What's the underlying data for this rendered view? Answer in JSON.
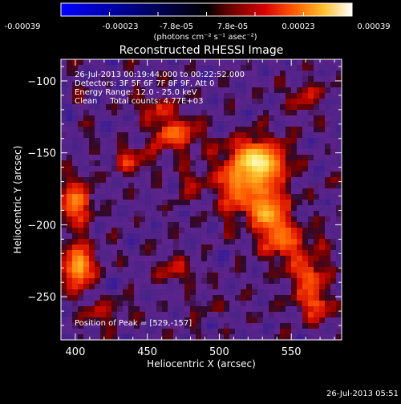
{
  "chart_data": {
    "type": "heatmap",
    "title": "Reconstructed RHESSI Image",
    "xlabel": "Heliocentric X (arcsec)",
    "ylabel": "Heliocentric Y (arcsec)",
    "xlim": [
      390,
      585
    ],
    "ylim": [
      -280,
      -85
    ],
    "x_ticks": [
      400,
      450,
      500,
      550
    ],
    "y_ticks": [
      -100,
      -150,
      -200,
      -250
    ],
    "colorbar": {
      "ticks": [
        "-0.00039",
        "-0.00023",
        "-7.8e-05",
        "7.8e-05",
        "0.00023",
        "0.00039"
      ],
      "range": [
        -0.00039,
        0.00039
      ],
      "unit_label": "(photons cm⁻² s⁻¹ asec⁻²)"
    },
    "annotations": [
      "26-Jul-2013 00:19:44.000 to 00:22:52.000",
      "Detectors: 3F 5F 6F 7F 8F 9F, Att 0",
      "Energy Range: 12.0 - 25.0 keV",
      "Clean     Total counts: 4.77E+03"
    ],
    "peak_label": "Position of Peak = [529,-157]",
    "peak": [
      529,
      -157
    ],
    "sources": [
      {
        "x": 529,
        "y": -157,
        "sx": 13,
        "sy": 11,
        "amp": 1.0
      },
      {
        "x": 533,
        "y": -190,
        "sx": 10,
        "sy": 12,
        "amp": 0.85
      },
      {
        "x": 510,
        "y": -172,
        "sx": 9,
        "sy": 16,
        "amp": 0.55
      },
      {
        "x": 548,
        "y": -212,
        "sx": 12,
        "sy": 9,
        "amp": 0.55
      },
      {
        "x": 562,
        "y": -237,
        "sx": 9,
        "sy": 12,
        "amp": 0.6
      },
      {
        "x": 568,
        "y": -258,
        "sx": 8,
        "sy": 8,
        "amp": 0.5
      },
      {
        "x": 456,
        "y": -118,
        "sx": 10,
        "sy": 6,
        "amp": 0.45
      },
      {
        "x": 470,
        "y": -138,
        "sx": 12,
        "sy": 8,
        "amp": 0.6
      },
      {
        "x": 438,
        "y": -155,
        "sx": 9,
        "sy": 7,
        "amp": 0.45
      },
      {
        "x": 400,
        "y": -185,
        "sx": 8,
        "sy": 12,
        "amp": 0.7
      },
      {
        "x": 402,
        "y": -228,
        "sx": 7,
        "sy": 12,
        "amp": 0.8
      },
      {
        "x": 470,
        "y": -232,
        "sx": 10,
        "sy": 6,
        "amp": 0.4
      },
      {
        "x": 480,
        "y": -170,
        "sx": 8,
        "sy": 8,
        "amp": 0.35
      },
      {
        "x": 420,
        "y": -262,
        "sx": 9,
        "sy": 6,
        "amp": 0.35
      },
      {
        "x": 560,
        "y": -110,
        "sx": 10,
        "sy": 8,
        "amp": 0.3
      }
    ]
  },
  "footer": {
    "timestamp": "26-Jul-2013 05:51"
  }
}
